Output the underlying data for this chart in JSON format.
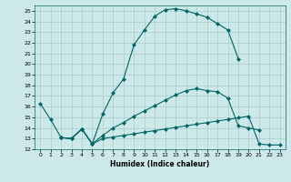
{
  "xlabel": "Humidex (Indice chaleur)",
  "bg_color": "#cce8e8",
  "line_color": "#006666",
  "grid_color": "#aacccc",
  "ylim": [
    12,
    25.5
  ],
  "xlim": [
    -0.5,
    23.5
  ],
  "yticks": [
    12,
    13,
    14,
    15,
    16,
    17,
    18,
    19,
    20,
    21,
    22,
    23,
    24,
    25
  ],
  "xticks": [
    0,
    1,
    2,
    3,
    4,
    5,
    6,
    7,
    8,
    9,
    10,
    11,
    12,
    13,
    14,
    15,
    16,
    17,
    18,
    19,
    20,
    21,
    22,
    23
  ],
  "curve1_x": [
    0,
    1,
    2,
    3,
    4,
    5,
    6,
    7,
    8,
    9,
    10,
    11,
    12,
    13,
    14,
    15,
    16,
    17,
    18,
    19
  ],
  "curve1_y": [
    16.3,
    14.8,
    13.1,
    13.0,
    13.9,
    12.5,
    15.3,
    17.3,
    18.6,
    21.8,
    23.2,
    24.5,
    25.1,
    25.2,
    25.0,
    24.7,
    24.4,
    23.8,
    23.2,
    20.5
  ],
  "curve2_x": [
    2,
    3,
    4,
    5,
    6,
    7,
    8,
    9,
    10,
    11,
    12,
    13,
    14,
    15,
    16,
    17,
    18,
    19,
    20,
    21,
    22,
    23
  ],
  "curve2_y": [
    13.1,
    13.0,
    13.9,
    12.5,
    13.0,
    13.15,
    13.3,
    13.45,
    13.6,
    13.75,
    13.9,
    14.05,
    14.2,
    14.35,
    14.5,
    14.65,
    14.8,
    14.95,
    15.1,
    12.5,
    12.4,
    12.4
  ],
  "curve3_x": [
    2,
    3,
    4,
    5,
    6,
    7,
    8,
    9,
    10,
    11,
    12,
    13,
    14,
    15,
    16,
    17,
    18,
    19,
    20,
    21
  ],
  "curve3_y": [
    13.1,
    13.0,
    13.9,
    12.5,
    13.3,
    14.0,
    14.5,
    15.1,
    15.6,
    16.1,
    16.6,
    17.1,
    17.5,
    17.7,
    17.5,
    17.4,
    16.8,
    14.2,
    14.0,
    13.8
  ]
}
